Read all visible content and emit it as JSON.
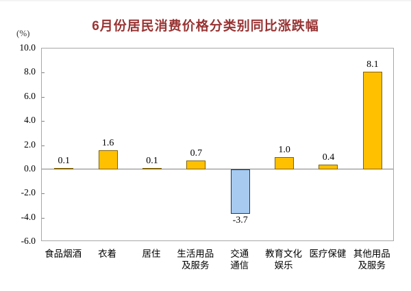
{
  "title": "6月份居民消费价格分类别同比涨跌幅",
  "colors": {
    "title_text": "#993333",
    "bar_fill": "#FFC000",
    "bar_border": "#806000",
    "negative_bar_fill": "#A6CAF0",
    "negative_bar_border": "#17375E",
    "plot_border": "#A6A6A6",
    "zero_line": "#808080",
    "tick": "#808080",
    "label_text": "#000000"
  },
  "chart_data": {
    "type": "bar",
    "title": "6月份居民消费价格分类别同比涨跌幅",
    "unit_label": "(%)",
    "categories": [
      "食品烟酒",
      "衣着",
      "居住",
      "生活用品及服务",
      "交通通信",
      "教育文化娱乐",
      "医疗保健",
      "其他用品及服务"
    ],
    "category_lines": [
      [
        "食品烟酒"
      ],
      [
        "衣着"
      ],
      [
        "居住"
      ],
      [
        "生活用品",
        "及服务"
      ],
      [
        "交通",
        "通信"
      ],
      [
        "教育文化",
        "娱乐"
      ],
      [
        "医疗保健"
      ],
      [
        "其他用品",
        "及服务"
      ]
    ],
    "values": [
      0.1,
      1.6,
      0.1,
      0.7,
      -3.7,
      1.0,
      0.4,
      8.1
    ],
    "value_labels": [
      "0.1",
      "1.6",
      "0.1",
      "0.7",
      "-3.7",
      "1.0",
      "0.4",
      "8.1"
    ],
    "y_tick_labels": [
      "10.0",
      "8.0",
      "6.0",
      "4.0",
      "2.0",
      "0.0",
      "-2.0",
      "-4.0",
      "-6.0"
    ],
    "y_tick_values": [
      10,
      8,
      6,
      4,
      2,
      0,
      -2,
      -4,
      -6
    ],
    "ylim": [
      -6,
      10
    ],
    "xlabel": "",
    "ylabel": "(%)",
    "grid": false,
    "legend": "none"
  }
}
